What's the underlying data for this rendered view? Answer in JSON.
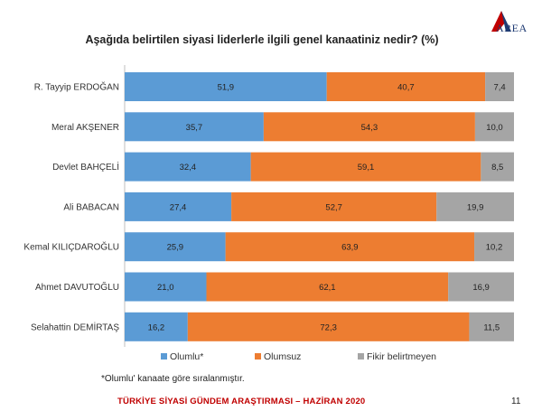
{
  "title": "Aşağıda belirtilen siyasi liderlerle ilgili genel kanaatiniz nedir? (%)",
  "logo": {
    "text": "AREA"
  },
  "footnote": "*Olumlu' kanaate göre sıralanmıştır.",
  "footer": "TÜRKİYE SİYASİ GÜNDEM ARAŞTIRMASI – HAZİRAN 2020",
  "page_number": "11",
  "colors": {
    "olumlu": "#5b9bd5",
    "olumsuz": "#ed7d31",
    "fikir": "#a5a5a5"
  },
  "chart_data": {
    "type": "bar",
    "orientation": "horizontal",
    "stacked": true,
    "categories": [
      "R. Tayyip ERDOĞAN",
      "Meral AKŞENER",
      "Devlet BAHÇELİ",
      "Ali BABACAN",
      "Kemal KILIÇDAROĞLU",
      "Ahmet DAVUTOĞLU",
      "Selahattin DEMİRTAŞ"
    ],
    "series": [
      {
        "name": "Olumlu*",
        "values": [
          51.9,
          35.7,
          32.4,
          27.4,
          25.9,
          21.0,
          16.2
        ],
        "labels": [
          "51,9",
          "35,7",
          "32,4",
          "27,4",
          "25,9",
          "21,0",
          "16,2"
        ]
      },
      {
        "name": "Olumsuz",
        "values": [
          40.7,
          54.3,
          59.1,
          52.7,
          63.9,
          62.1,
          72.3
        ],
        "labels": [
          "40,7",
          "54,3",
          "59,1",
          "52,7",
          "63,9",
          "62,1",
          "72,3"
        ]
      },
      {
        "name": "Fikir belirtmeyen",
        "values": [
          7.4,
          10.0,
          8.5,
          19.9,
          10.2,
          16.9,
          11.5
        ],
        "labels": [
          "7,4",
          "10,0",
          "8,5",
          "19,9",
          "10,2",
          "16,9",
          "11,5"
        ]
      }
    ],
    "xlim": [
      0,
      100
    ],
    "grid": false,
    "legend": "bottom"
  }
}
